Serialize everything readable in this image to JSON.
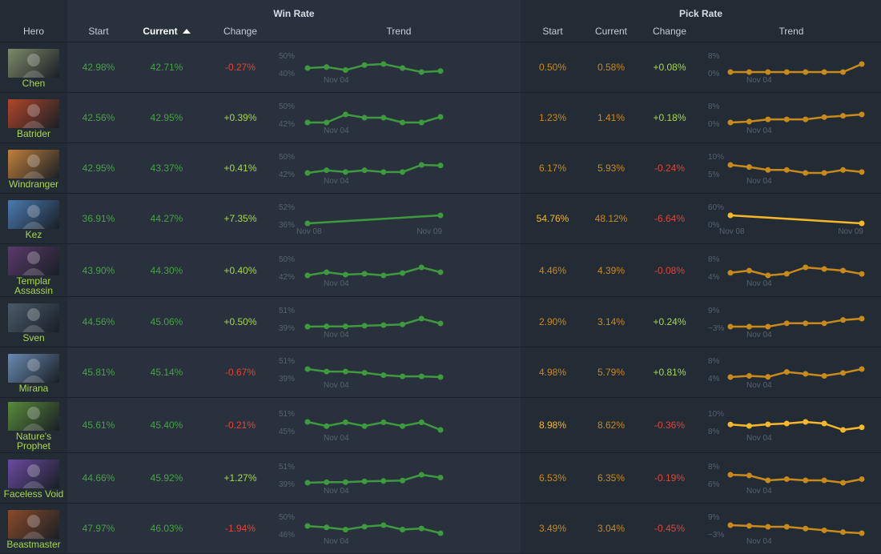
{
  "header": {
    "win_rate_group": "Win Rate",
    "pick_rate_group": "Pick Rate",
    "hero_col": "Hero",
    "wr_start": "Start",
    "wr_current": "Current",
    "wr_change": "Change",
    "wr_trend": "Trend",
    "pr_start": "Start",
    "pr_current": "Current",
    "pr_change": "Change",
    "pr_trend": "Trend",
    "sorted_by": "Current",
    "sort_direction": "ascending"
  },
  "colors": {
    "win_rate_line": "#3f9a3f",
    "pick_rate_line": "#c98a1c",
    "pick_rate_highlight": "#f5b82a",
    "positive": "#a8d84a",
    "negative": "#e0453a"
  },
  "rows": [
    {
      "hero": "Chen",
      "portrait_icon": "chen-portrait",
      "portrait_color": "#7d8a6a",
      "wr_start": "42.98%",
      "wr_current": "42.71%",
      "wr_change": "-0.27%",
      "wr_dir": "neg",
      "wr_trend": {
        "y_top": "50%",
        "y_bot": "40%",
        "x_labels": [
          "Nov 04"
        ],
        "values": [
          43.0,
          43.1,
          42.8,
          43.3,
          43.4,
          43.0,
          42.6,
          42.7
        ]
      },
      "pr_start": "0.50%",
      "pr_current": "0.58%",
      "pr_change": "+0.08%",
      "pr_dir": "pos",
      "pr_hl": false,
      "pr_trend": {
        "y_top": "8%",
        "y_bot": "0%",
        "x_labels": [
          "Nov 04"
        ],
        "values": [
          0.5,
          0.5,
          0.5,
          0.5,
          0.5,
          0.5,
          0.5,
          0.58
        ]
      }
    },
    {
      "hero": "Batrider",
      "portrait_icon": "batrider-portrait",
      "portrait_color": "#b0462a",
      "wr_start": "42.56%",
      "wr_current": "42.95%",
      "wr_change": "+0.39%",
      "wr_dir": "pos",
      "wr_trend": {
        "y_top": "50%",
        "y_bot": "42%",
        "x_labels": [
          "Nov 04"
        ],
        "values": [
          42.6,
          42.6,
          43.1,
          42.9,
          42.9,
          42.6,
          42.6,
          42.95
        ]
      },
      "pr_start": "1.23%",
      "pr_current": "1.41%",
      "pr_change": "+0.18%",
      "pr_dir": "pos",
      "pr_hl": false,
      "pr_trend": {
        "y_top": "8%",
        "y_bot": "0%",
        "x_labels": [
          "Nov 04"
        ],
        "values": [
          1.23,
          1.25,
          1.3,
          1.3,
          1.3,
          1.35,
          1.38,
          1.41
        ]
      }
    },
    {
      "hero": "Windranger",
      "portrait_icon": "windranger-portrait",
      "portrait_color": "#c0803a",
      "wr_start": "42.95%",
      "wr_current": "43.37%",
      "wr_change": "+0.41%",
      "wr_dir": "pos",
      "wr_trend": {
        "y_top": "50%",
        "y_bot": "42%",
        "x_labels": [
          "Nov 04"
        ],
        "values": [
          42.95,
          43.1,
          43.0,
          43.1,
          43.0,
          43.0,
          43.4,
          43.37
        ]
      },
      "pr_start": "6.17%",
      "pr_current": "5.93%",
      "pr_change": "-0.24%",
      "pr_dir": "neg",
      "pr_hl": false,
      "pr_trend": {
        "y_top": "10%",
        "y_bot": "5%",
        "x_labels": [
          "Nov 04"
        ],
        "values": [
          6.17,
          6.1,
          6.0,
          6.0,
          5.9,
          5.9,
          6.0,
          5.93
        ]
      }
    },
    {
      "hero": "Kez",
      "portrait_icon": "kez-portrait",
      "portrait_color": "#4a7ab0",
      "wr_start": "36.91%",
      "wr_current": "44.27%",
      "wr_change": "+7.35%",
      "wr_dir": "pos",
      "wr_trend": {
        "y_top": "52%",
        "y_bot": "36%",
        "x_labels": [
          "Nov 08",
          "Nov 09"
        ],
        "values": [
          36.91,
          44.27
        ]
      },
      "pr_start": "54.76%",
      "pr_current": "48.12%",
      "pr_change": "-6.64%",
      "pr_dir": "neg",
      "pr_hl": true,
      "pr_trend": {
        "y_top": "60%",
        "y_bot": "0%",
        "x_labels": [
          "Nov 08",
          "Nov 09"
        ],
        "values": [
          54.76,
          48.12
        ]
      }
    },
    {
      "hero": "Templar Assassin",
      "portrait_icon": "templar-assassin-portrait",
      "portrait_color": "#5a3a6a",
      "wr_start": "43.90%",
      "wr_current": "44.30%",
      "wr_change": "+0.40%",
      "wr_dir": "pos",
      "wr_trend": {
        "y_top": "50%",
        "y_bot": "42%",
        "x_labels": [
          "Nov 04"
        ],
        "values": [
          43.9,
          44.3,
          44.0,
          44.1,
          43.9,
          44.2,
          44.9,
          44.3
        ]
      },
      "pr_start": "4.46%",
      "pr_current": "4.39%",
      "pr_change": "-0.08%",
      "pr_dir": "neg",
      "pr_hl": false,
      "pr_trend": {
        "y_top": "8%",
        "y_bot": "4%",
        "x_labels": [
          "Nov 04"
        ],
        "values": [
          4.46,
          4.6,
          4.3,
          4.4,
          4.8,
          4.7,
          4.6,
          4.39
        ]
      }
    },
    {
      "hero": "Sven",
      "portrait_icon": "sven-portrait",
      "portrait_color": "#4a5a6a",
      "wr_start": "44.56%",
      "wr_current": "45.06%",
      "wr_change": "+0.50%",
      "wr_dir": "pos",
      "wr_trend": {
        "y_top": "51%",
        "y_bot": "39%",
        "x_labels": [
          "Nov 04"
        ],
        "values": [
          44.56,
          44.6,
          44.6,
          44.7,
          44.8,
          44.9,
          45.8,
          45.06
        ]
      },
      "pr_start": "2.90%",
      "pr_current": "3.14%",
      "pr_change": "+0.24%",
      "pr_dir": "pos",
      "pr_hl": false,
      "pr_trend": {
        "y_top": "9%",
        "y_bot": "−3%",
        "x_labels": [
          "Nov 04"
        ],
        "values": [
          2.9,
          2.9,
          2.9,
          3.0,
          3.0,
          3.0,
          3.1,
          3.14
        ]
      }
    },
    {
      "hero": "Mirana",
      "portrait_icon": "mirana-portrait",
      "portrait_color": "#6a8ab0",
      "wr_start": "45.81%",
      "wr_current": "45.14%",
      "wr_change": "-0.67%",
      "wr_dir": "neg",
      "wr_trend": {
        "y_top": "51%",
        "y_bot": "39%",
        "x_labels": [
          "Nov 04"
        ],
        "values": [
          45.81,
          45.6,
          45.6,
          45.5,
          45.3,
          45.2,
          45.2,
          45.14
        ]
      },
      "pr_start": "4.98%",
      "pr_current": "5.79%",
      "pr_change": "+0.81%",
      "pr_dir": "pos",
      "pr_hl": false,
      "pr_trend": {
        "y_top": "8%",
        "y_bot": "4%",
        "x_labels": [
          "Nov 04"
        ],
        "values": [
          4.98,
          5.1,
          5.0,
          5.5,
          5.3,
          5.1,
          5.4,
          5.79
        ]
      }
    },
    {
      "hero": "Nature's Prophet",
      "portrait_icon": "natures-prophet-portrait",
      "portrait_color": "#5a8a3a",
      "wr_start": "45.61%",
      "wr_current": "45.40%",
      "wr_change": "-0.21%",
      "wr_dir": "neg",
      "wr_trend": {
        "y_top": "51%",
        "y_bot": "45%",
        "x_labels": [
          "Nov 04"
        ],
        "values": [
          45.61,
          45.5,
          45.6,
          45.5,
          45.6,
          45.5,
          45.6,
          45.4
        ]
      },
      "pr_start": "8.98%",
      "pr_current": "8.62%",
      "pr_change": "-0.36%",
      "pr_dir": "neg",
      "pr_hl": true,
      "pr_trend": {
        "y_top": "10%",
        "y_bot": "8%",
        "x_labels": [
          "Nov 04"
        ],
        "values": [
          8.98,
          8.8,
          9.0,
          9.1,
          9.3,
          9.1,
          8.3,
          8.62
        ]
      }
    },
    {
      "hero": "Faceless Void",
      "portrait_icon": "faceless-void-portrait",
      "portrait_color": "#6a4aa0",
      "wr_start": "44.66%",
      "wr_current": "45.92%",
      "wr_change": "+1.27%",
      "wr_dir": "pos",
      "wr_trend": {
        "y_top": "51%",
        "y_bot": "39%",
        "x_labels": [
          "Nov 04"
        ],
        "values": [
          44.66,
          44.8,
          44.8,
          45.0,
          45.1,
          45.2,
          46.6,
          45.92
        ]
      },
      "pr_start": "6.53%",
      "pr_current": "6.35%",
      "pr_change": "-0.19%",
      "pr_dir": "neg",
      "pr_hl": false,
      "pr_trend": {
        "y_top": "8%",
        "y_bot": "6%",
        "x_labels": [
          "Nov 04"
        ],
        "values": [
          6.53,
          6.5,
          6.3,
          6.35,
          6.3,
          6.3,
          6.2,
          6.35
        ]
      }
    },
    {
      "hero": "Beastmaster",
      "portrait_icon": "beastmaster-portrait",
      "portrait_color": "#8a4a2a",
      "wr_start": "47.97%",
      "wr_current": "46.03%",
      "wr_change": "-1.94%",
      "wr_dir": "neg",
      "wr_trend": {
        "y_top": "50%",
        "y_bot": "46%",
        "x_labels": [
          "Nov 04"
        ],
        "values": [
          47.97,
          47.6,
          47.0,
          47.8,
          48.2,
          47.0,
          47.3,
          46.03
        ]
      },
      "pr_start": "3.49%",
      "pr_current": "3.04%",
      "pr_change": "-0.45%",
      "pr_dir": "neg",
      "pr_hl": false,
      "pr_trend": {
        "y_top": "9%",
        "y_bot": "−3%",
        "x_labels": [
          "Nov 04"
        ],
        "values": [
          3.49,
          3.45,
          3.4,
          3.4,
          3.3,
          3.2,
          3.1,
          3.04
        ]
      }
    }
  ]
}
